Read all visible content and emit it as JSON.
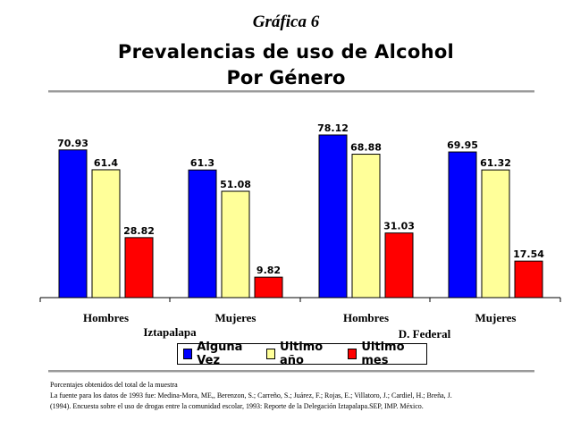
{
  "header": {
    "grafica": "Gráfica 6",
    "title_line1": "Prevalencias de uso de Alcohol",
    "title_line2": "Por Género"
  },
  "chart_data": {
    "type": "bar",
    "categories": [
      "Hombres",
      "Mujeres",
      "Hombres",
      "Mujeres"
    ],
    "groups": [
      "Iztapalapa",
      "D. Federal"
    ],
    "series": [
      {
        "name": "Alguna Vez",
        "color": "#0000ff",
        "values": [
          70.93,
          61.3,
          78.12,
          69.95
        ]
      },
      {
        "name": "Ultimo año",
        "color": "#ffff99",
        "values": [
          61.4,
          51.08,
          68.88,
          61.32
        ]
      },
      {
        "name": "Ultimo mes",
        "color": "#ff0000",
        "values": [
          28.82,
          9.82,
          31.03,
          17.54
        ]
      }
    ],
    "ylim": [
      0,
      80
    ],
    "legend_position": "bottom"
  },
  "notes": {
    "line1": "Porcentajes obtenidos del total de la muestra",
    "line2": "La fuente para los datos de 1993 fue: Medina-Mora, ME,, Berenzon, S.; Carreño, S.; Juárez, F.; Rojas, E.; Villatoro, J.; Cardiel, H.; Breña, J.",
    "line3": "(1994). Encuesta sobre el uso de drogas entre la comunidad escolar, 1993: Reporte de la Delegación Iztapalapa.SEP, IMP. México."
  }
}
